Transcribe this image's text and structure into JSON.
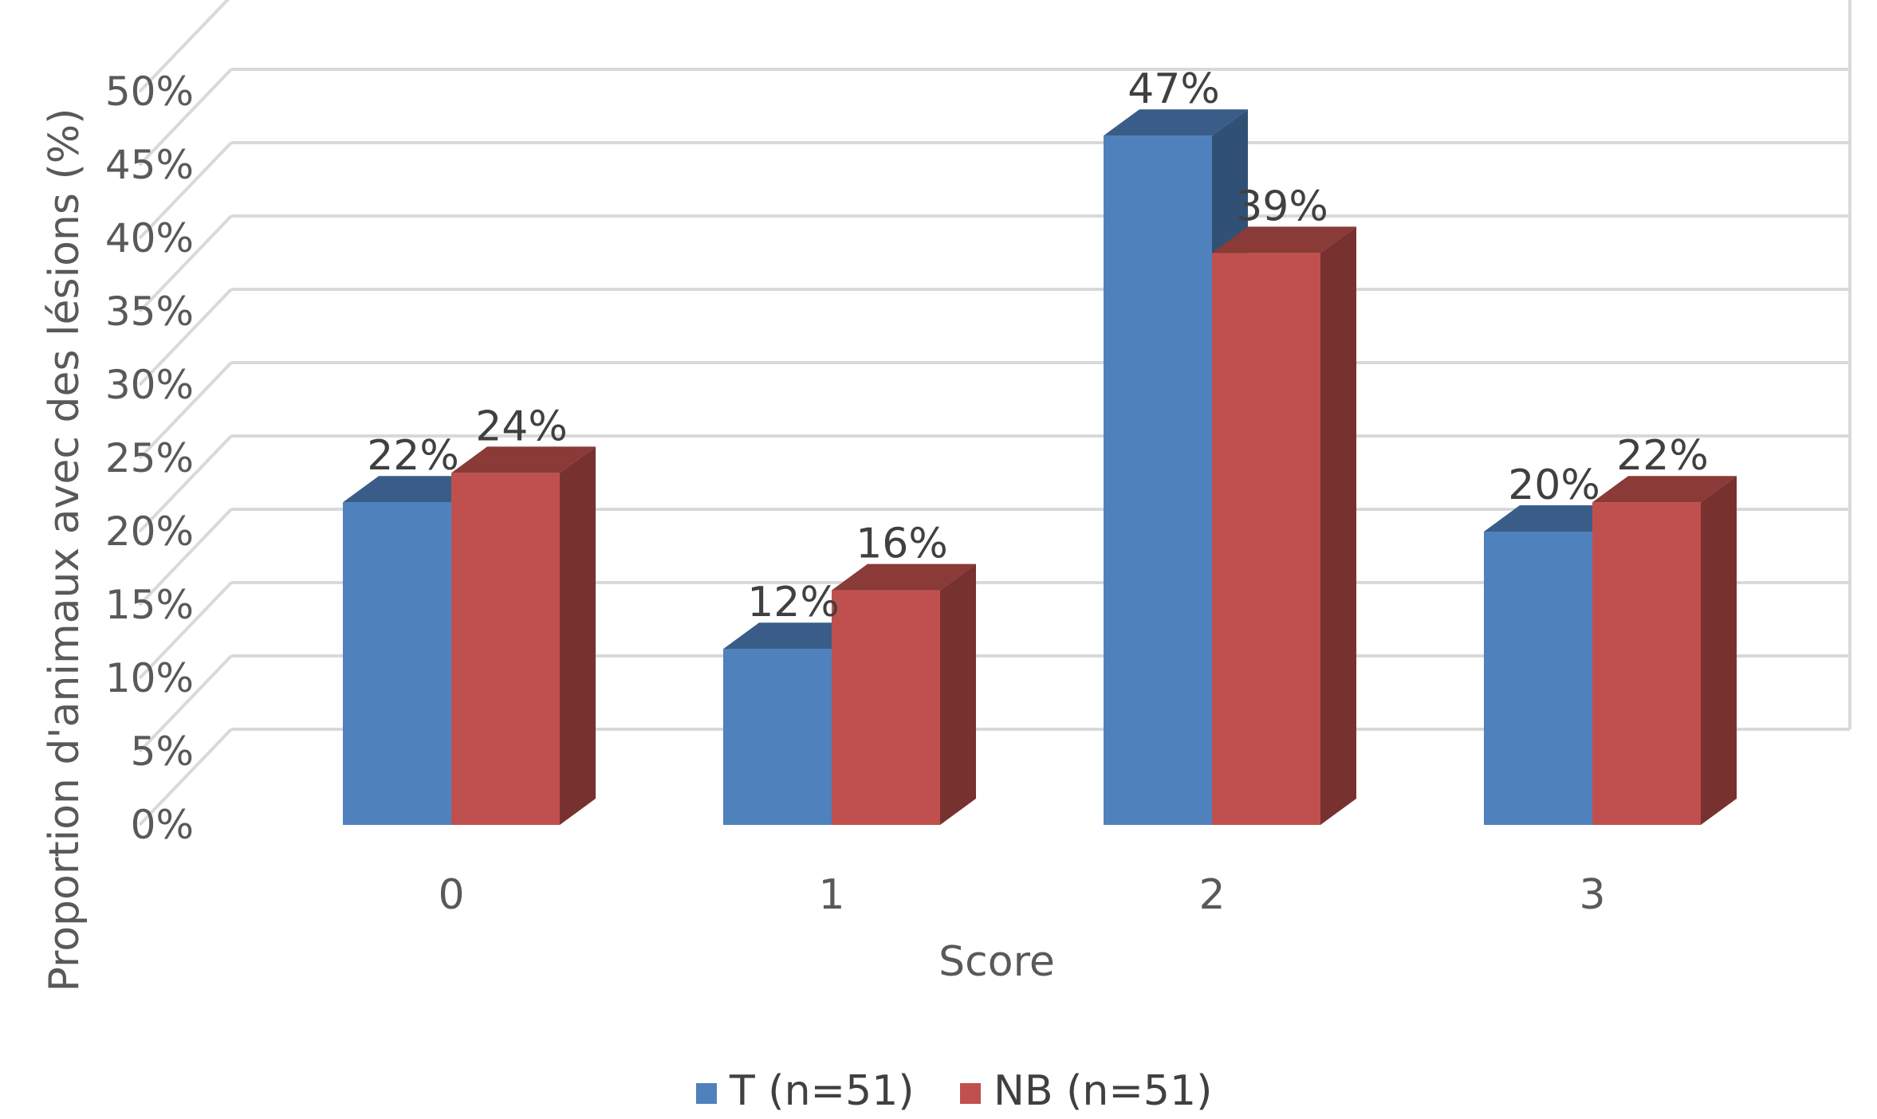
{
  "chart_data": {
    "type": "bar",
    "style": "3d-clustered-column",
    "categories": [
      "0",
      "1",
      "2",
      "3"
    ],
    "series": [
      {
        "name": "T (n=51)",
        "values": [
          22,
          12,
          47,
          20
        ],
        "labels": [
          "22%",
          "12%",
          "47%",
          "20%"
        ],
        "color": "#4f81bd"
      },
      {
        "name": "NB (n=51)",
        "values": [
          24,
          16,
          39,
          22
        ],
        "labels": [
          "24%",
          "16%",
          "39%",
          "22%"
        ],
        "color": "#c0504d"
      }
    ],
    "xlabel": "Score",
    "ylabel": "Proportion d'animaux avec des lésions (%)",
    "ylim": [
      0,
      50
    ],
    "yticks": [
      "0%",
      "5%",
      "10%",
      "15%",
      "20%",
      "25%",
      "30%",
      "35%",
      "40%",
      "45%",
      "50%"
    ],
    "grid": true,
    "legend_position": "bottom"
  }
}
